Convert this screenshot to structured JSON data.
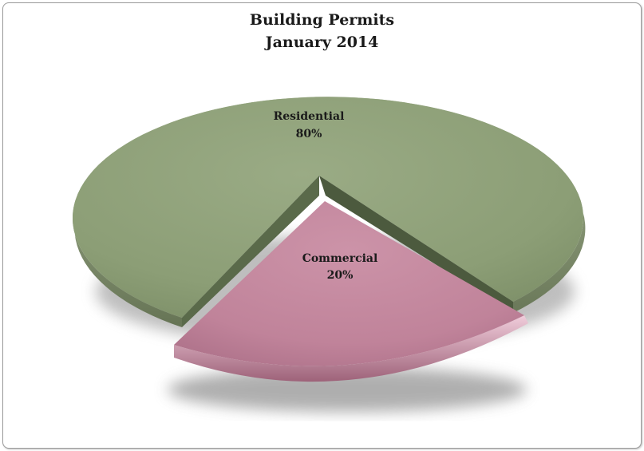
{
  "chart_data": {
    "type": "pie",
    "title": "Building Permits",
    "subtitle": "January 2014",
    "slices": [
      {
        "label": "Residential",
        "value": 80,
        "value_label": "80%",
        "color": "#8c9e76"
      },
      {
        "label": "Commercial",
        "value": 20,
        "value_label": "20%",
        "color": "#c4869e"
      }
    ],
    "style": "3d-exploded",
    "legend": "none"
  }
}
